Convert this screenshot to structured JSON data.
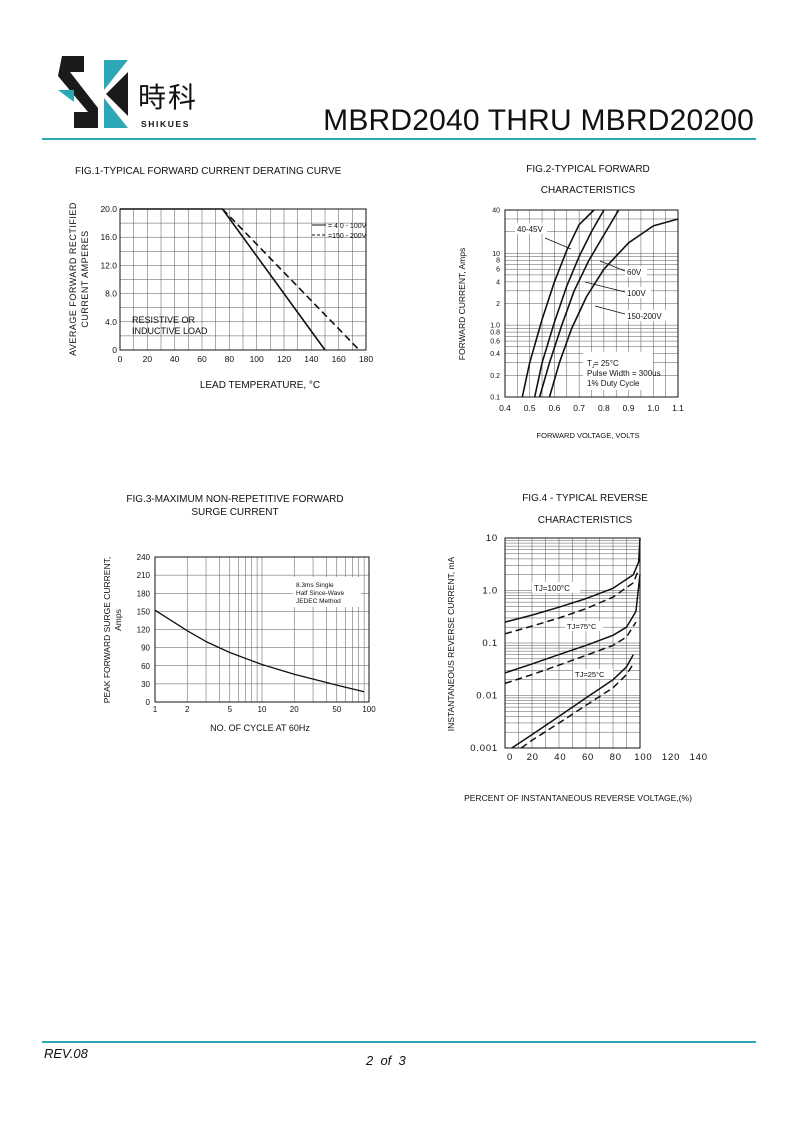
{
  "header": {
    "logo_cn": "時科",
    "logo_en": "SHIKUES",
    "title": "MBRD2040 THRU MBRD20200",
    "colors": {
      "accent": "#2ba7b5",
      "logo_dark": "#1a1a1a"
    }
  },
  "footer": {
    "rev": "REV.08",
    "page": "2  of  3"
  },
  "fig1": {
    "title": "FIG.1-TYPICAL FORWARD CURRENT DERATING CURVE",
    "ylabel_line1": "AVERAGE FORWARD RECTIFIED",
    "ylabel_line2": "CURRENT AMPERES",
    "xlabel": "LEAD TEMPERATURE, °C",
    "annotation_line1": "RESISTIVE OR",
    "annotation_line2": "INDUCTIVE LOAD",
    "legend_solid": "= 4 0 - 100V",
    "legend_dash": "=150 - 200V"
  },
  "fig2": {
    "title_line1": "FIG.2-TYPICAL FORWARD",
    "title_line2": "CHARACTERISTICS",
    "ylabel": "FORWARD CURRENT, Amps",
    "xlabel": "FORWARD VOLTAGE, VOLTS",
    "label_4045": "40-45V",
    "label_60": "60V",
    "label_100": "100V",
    "label_150": "150-200V",
    "note_tj": "T  = 25°C",
    "note_tj_sub": "J",
    "note_pulse": "Pulse Width = 300us",
    "note_duty": "1% Duty Cycle"
  },
  "fig3": {
    "title_line1": "FIG.3-MAXIMUM NON-REPETITIVE FORWARD",
    "title_line2": "SURGE CURRENT",
    "ylabel_line1": "PEAK FORWARD SURGE CURRENT,",
    "ylabel_line2": "Amps",
    "xlabel": "NO. OF CYCLE AT 60Hz",
    "legend_line1": "8.3ms Single",
    "legend_line2": "Half Since-Wave",
    "legend_line3": "JEDEC Method"
  },
  "fig4": {
    "title_line1": "FIG.4 - TYPICAL REVERSE",
    "title_line2": "CHARACTERISTICS",
    "ylabel": "INSTANTANEOUS REVERSE  CURRENT, mA",
    "xlabel": "PERCENT OF INSTANTANEOUS REVERSE VOLTAGE,(%)",
    "label_100": "TJ=100°C",
    "label_75": "TJ=75°C",
    "label_25": "TJ=25°C"
  },
  "chart_data": [
    {
      "type": "line",
      "id": "fig1",
      "x_ticks": [
        "0",
        "20",
        "40",
        "60",
        "80",
        "100",
        "120",
        "140",
        "160",
        "180"
      ],
      "y_ticks": [
        "0",
        "4.0",
        "8.0",
        "12.0",
        "16.0",
        "20.0"
      ],
      "xlim": [
        0,
        180
      ],
      "ylim": [
        0,
        20
      ],
      "series": [
        {
          "name": "= 4 0 - 100V",
          "style": "solid",
          "x": [
            0,
            75,
            150
          ],
          "y": [
            20,
            20,
            0
          ]
        },
        {
          "name": "=150 - 200V",
          "style": "dashed",
          "x": [
            75,
            175
          ],
          "y": [
            20,
            0
          ]
        }
      ]
    },
    {
      "type": "line",
      "id": "fig2",
      "y_scale": "log",
      "x_ticks": [
        "0.4",
        "0.5",
        "0.6",
        "0.7",
        "0.8",
        "0.9",
        "1.0",
        "1.1"
      ],
      "y_ticks": [
        "0.1",
        "0.2",
        "0.4",
        "0.6",
        "0.8",
        "1.0",
        "2",
        "4",
        "6",
        "8",
        "10",
        "40"
      ],
      "xlim": [
        0.4,
        1.1
      ],
      "ylim": [
        0.1,
        40
      ],
      "series": [
        {
          "name": "40-45V",
          "x": [
            0.47,
            0.5,
            0.55,
            0.6,
            0.65,
            0.7,
            0.76
          ],
          "y": [
            0.1,
            0.3,
            1.2,
            4,
            11,
            25,
            40
          ]
        },
        {
          "name": "60V",
          "x": [
            0.52,
            0.55,
            0.6,
            0.65,
            0.7,
            0.75,
            0.8
          ],
          "y": [
            0.1,
            0.3,
            1.1,
            3.5,
            9,
            20,
            40
          ]
        },
        {
          "name": "100V",
          "x": [
            0.54,
            0.58,
            0.63,
            0.68,
            0.74,
            0.8,
            0.86
          ],
          "y": [
            0.1,
            0.3,
            1.0,
            3,
            8,
            18,
            40
          ]
        },
        {
          "name": "150-200V",
          "x": [
            0.58,
            0.62,
            0.67,
            0.73,
            0.8,
            0.9,
            1.0,
            1.1
          ],
          "y": [
            0.1,
            0.3,
            0.9,
            2.5,
            6,
            14,
            24,
            30
          ]
        }
      ]
    },
    {
      "type": "line",
      "id": "fig3",
      "x_scale": "log",
      "x_ticks": [
        "1",
        "2",
        "5",
        "10",
        "20",
        "50",
        "100"
      ],
      "y_ticks": [
        "0",
        "30",
        "60",
        "90",
        "120",
        "150",
        "180",
        "210",
        "240"
      ],
      "xlim": [
        1,
        100
      ],
      "ylim": [
        0,
        240
      ],
      "series": [
        {
          "name": "",
          "x": [
            1,
            2,
            3,
            5,
            10,
            20,
            50,
            90
          ],
          "y": [
            152,
            118,
            100,
            82,
            62,
            46,
            28,
            17
          ]
        }
      ]
    },
    {
      "type": "line",
      "id": "fig4",
      "y_scale": "log",
      "x_ticks": [
        "0",
        "20",
        "40",
        "60",
        "80",
        "100",
        "120",
        "140"
      ],
      "y_ticks": [
        "0.001",
        "0.01",
        "0.1",
        "1.0",
        "10"
      ],
      "xlim": [
        0,
        100
      ],
      "ylim": [
        0.001,
        10
      ],
      "series": [
        {
          "name": "TJ=100°C",
          "style": "solid",
          "x": [
            0,
            20,
            40,
            60,
            80,
            95,
            99,
            100
          ],
          "y": [
            0.25,
            0.34,
            0.48,
            0.7,
            1.1,
            2.0,
            3.5,
            10
          ]
        },
        {
          "name": "TJ=100°C",
          "style": "dashed",
          "x": [
            0,
            20,
            40,
            60,
            80,
            95,
            99
          ],
          "y": [
            0.15,
            0.21,
            0.3,
            0.45,
            0.75,
            1.4,
            2.5
          ]
        },
        {
          "name": "TJ=75°C",
          "style": "solid",
          "x": [
            0,
            20,
            40,
            60,
            80,
            90,
            97,
            100
          ],
          "y": [
            0.027,
            0.04,
            0.06,
            0.09,
            0.14,
            0.2,
            0.4,
            2
          ]
        },
        {
          "name": "TJ=75°C",
          "style": "dashed",
          "x": [
            0,
            20,
            40,
            60,
            80,
            90,
            97
          ],
          "y": [
            0.017,
            0.025,
            0.038,
            0.058,
            0.09,
            0.13,
            0.25
          ]
        },
        {
          "name": "TJ=25°C",
          "style": "solid",
          "x": [
            5,
            20,
            40,
            60,
            80,
            90,
            95
          ],
          "y": [
            0.001,
            0.0018,
            0.004,
            0.009,
            0.02,
            0.035,
            0.06
          ]
        },
        {
          "name": "TJ=25°C",
          "style": "dashed",
          "x": [
            12,
            20,
            40,
            60,
            80,
            90,
            95
          ],
          "y": [
            0.001,
            0.0014,
            0.003,
            0.0065,
            0.014,
            0.025,
            0.04
          ]
        }
      ]
    }
  ]
}
